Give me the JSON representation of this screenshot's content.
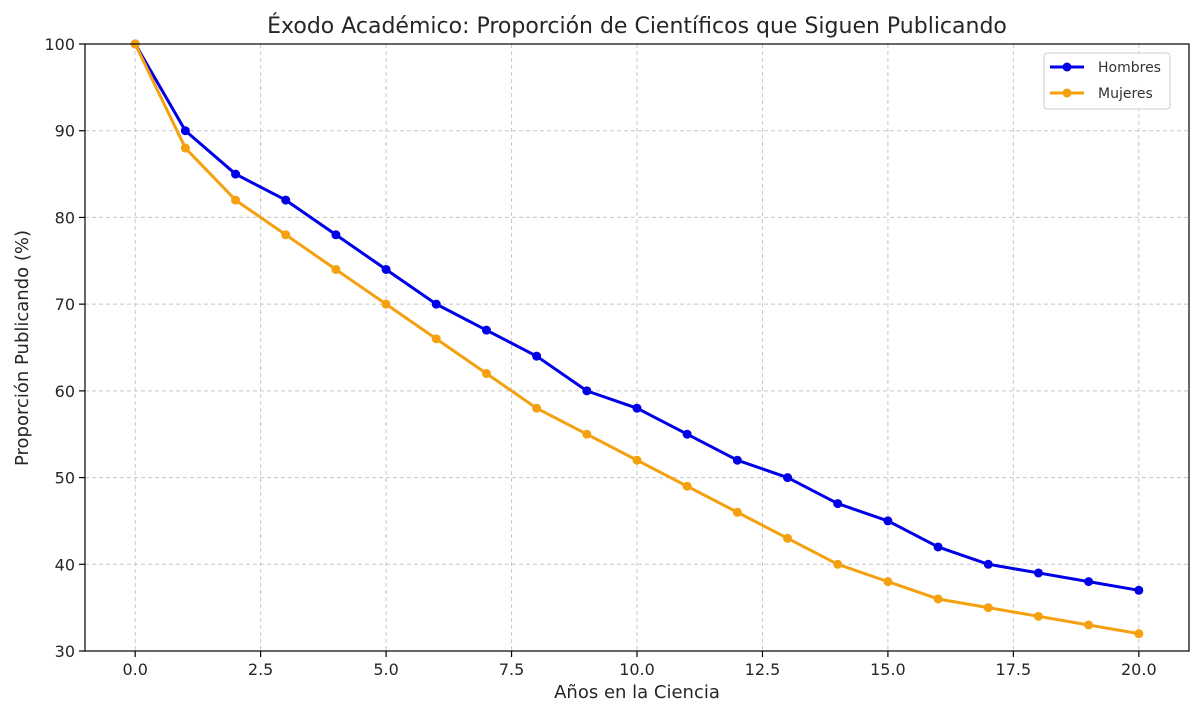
{
  "chart_data": {
    "type": "line",
    "title": "Éxodo Académico: Proporción de Científicos que Siguen Publicando",
    "xlabel": "Años en la Ciencia",
    "ylabel": "Proporción Publicando (%)",
    "xlim": [
      -1,
      21
    ],
    "ylim": [
      30,
      100
    ],
    "xticks": [
      0.0,
      2.5,
      5.0,
      7.5,
      10.0,
      12.5,
      15.0,
      17.5,
      20.0
    ],
    "xtick_labels": [
      "0.0",
      "2.5",
      "5.0",
      "7.5",
      "10.0",
      "12.5",
      "15.0",
      "17.5",
      "20.0"
    ],
    "yticks": [
      30,
      40,
      50,
      60,
      70,
      80,
      90,
      100
    ],
    "ytick_labels": [
      "30",
      "40",
      "50",
      "60",
      "70",
      "80",
      "90",
      "100"
    ],
    "grid": true,
    "legend_position": "top-right",
    "x": [
      0,
      1,
      2,
      3,
      4,
      5,
      6,
      7,
      8,
      9,
      10,
      11,
      12,
      13,
      14,
      15,
      16,
      17,
      18,
      19,
      20
    ],
    "series": [
      {
        "name": "Hombres",
        "color": "#0000e6",
        "values": [
          100,
          90,
          85,
          82,
          78,
          74,
          70,
          67,
          64,
          60,
          58,
          55,
          52,
          50,
          47,
          45,
          42,
          40,
          39,
          38,
          37
        ]
      },
      {
        "name": "Mujeres",
        "color": "#f5a00f",
        "values": [
          100,
          88,
          82,
          78,
          74,
          70,
          66,
          62,
          58,
          55,
          52,
          49,
          46,
          43,
          40,
          38,
          36,
          35,
          34,
          33,
          32
        ]
      }
    ]
  }
}
